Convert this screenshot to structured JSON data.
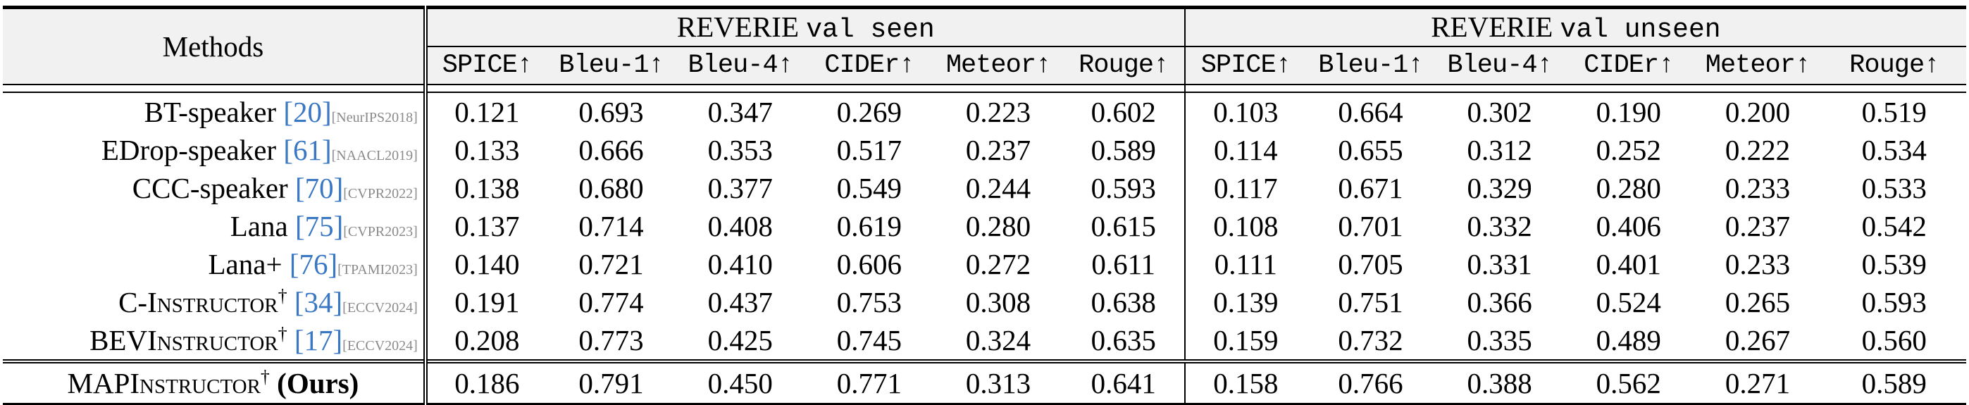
{
  "header": {
    "methods_label": "Methods",
    "group_seen_prefix": "REVERIE",
    "group_seen_split": "val seen",
    "group_unseen_prefix": "REVERIE",
    "group_unseen_split": "val unseen",
    "metrics": [
      "SPICE↑",
      "Bleu-1↑",
      "Bleu-4↑",
      "CIDEr↑",
      "Meteor↑",
      "Rouge↑"
    ]
  },
  "rows": [
    {
      "name": "BT-speaker",
      "ref": "[20]",
      "venue": "[NeurIPS2018]",
      "dagger": "",
      "seen": [
        "0.121",
        "0.693",
        "0.347",
        "0.269",
        "0.223",
        "0.602"
      ],
      "unseen": [
        "0.103",
        "0.664",
        "0.302",
        "0.190",
        "0.200",
        "0.519"
      ]
    },
    {
      "name": "EDrop-speaker",
      "ref": "[61]",
      "venue": "[NAACL2019]",
      "dagger": "",
      "seen": [
        "0.133",
        "0.666",
        "0.353",
        "0.517",
        "0.237",
        "0.589"
      ],
      "unseen": [
        "0.114",
        "0.655",
        "0.312",
        "0.252",
        "0.222",
        "0.534"
      ]
    },
    {
      "name": "CCC-speaker",
      "ref": "[70]",
      "venue": "[CVPR2022]",
      "dagger": "",
      "seen": [
        "0.138",
        "0.680",
        "0.377",
        "0.549",
        "0.244",
        "0.593"
      ],
      "unseen": [
        "0.117",
        "0.671",
        "0.329",
        "0.280",
        "0.233",
        "0.533"
      ]
    },
    {
      "name": "Lana",
      "ref": "[75]",
      "venue": "[CVPR2023]",
      "dagger": "",
      "seen": [
        "0.137",
        "0.714",
        "0.408",
        "0.619",
        "0.280",
        "0.615"
      ],
      "unseen": [
        "0.108",
        "0.701",
        "0.332",
        "0.406",
        "0.237",
        "0.542"
      ]
    },
    {
      "name": "Lana+",
      "ref": "[76]",
      "venue": "[TPAMI2023]",
      "dagger": "",
      "seen": [
        "0.140",
        "0.721",
        "0.410",
        "0.606",
        "0.272",
        "0.611"
      ],
      "unseen": [
        "0.111",
        "0.705",
        "0.331",
        "0.401",
        "0.233",
        "0.539"
      ]
    },
    {
      "name": "C-Instructor",
      "ref": "[34]",
      "venue": "[ECCV2024]",
      "dagger": "†",
      "seen": [
        "0.191",
        "0.774",
        "0.437",
        "0.753",
        "0.308",
        "0.638"
      ],
      "unseen": [
        "0.139",
        "0.751",
        "0.366",
        "0.524",
        "0.265",
        "0.593"
      ]
    },
    {
      "name": "BEVInstructor",
      "ref": "[17]",
      "venue": "[ECCV2024]",
      "dagger": "†",
      "seen": [
        "0.208",
        "0.773",
        "0.425",
        "0.745",
        "0.324",
        "0.635"
      ],
      "unseen": [
        "0.159",
        "0.732",
        "0.335",
        "0.489",
        "0.267",
        "0.560"
      ]
    }
  ],
  "ours": {
    "name": "MAPInstructor",
    "dagger": "†",
    "tag": "(Ours)",
    "seen": [
      "0.186",
      "0.791",
      "0.450",
      "0.771",
      "0.313",
      "0.641"
    ],
    "unseen": [
      "0.158",
      "0.766",
      "0.388",
      "0.562",
      "0.271",
      "0.589"
    ]
  },
  "bold_cells": {
    "BEVInstructor.seen": [
      0,
      4
    ],
    "BEVInstructor.unseen": [
      0
    ],
    "C-Instructor.unseen": [
      5
    ],
    "ours.seen": [
      1,
      2,
      3,
      5
    ],
    "ours.unseen": [
      1,
      2,
      3,
      4
    ]
  },
  "colors": {
    "citation": "#3a78c3",
    "venue": "#8a8a8a",
    "header_bg": "#f1f1f1"
  }
}
